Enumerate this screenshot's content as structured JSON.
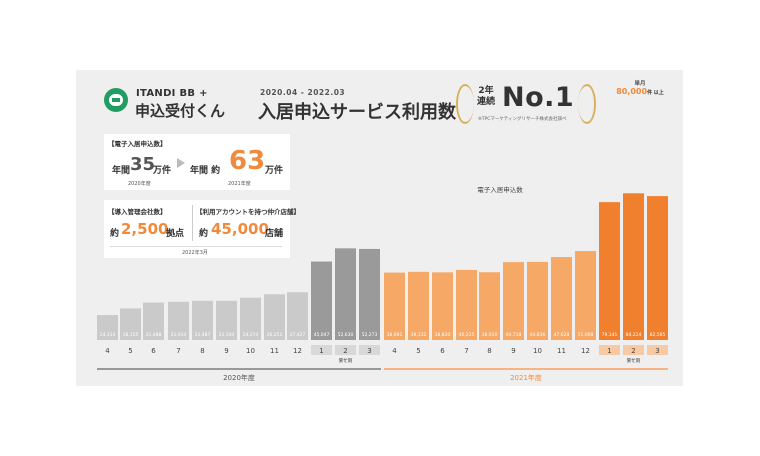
{
  "header": {
    "brand": "ITANDI BB +",
    "product": "申込受付くん",
    "period": "2020.04 - 2022.03",
    "headline": "入居申込サービス利用数",
    "award_years": "2年連続",
    "award_title": "No.1",
    "award_note": "※TPCマーケティングリサーチ株式会社調べ"
  },
  "stats": {
    "card1_tag": "【電子入居申込数】",
    "before_prefix": "年間",
    "before_value": "35",
    "before_unit": "万件",
    "before_year": "2020年度",
    "after_prefix": "年間 約",
    "after_value": "63",
    "after_unit": "万件",
    "after_year": "2021年度",
    "card2_tag_left": "【導入管理会社数】",
    "card2_tag_right": "【利用アカウントを持つ仲介店舗】",
    "companies_prefix": "約",
    "companies_value": "2,500",
    "companies_unit": "拠点",
    "stores_prefix": "約",
    "stores_value": "45,000",
    "stores_unit": "店舗",
    "card2_date": "2022年3月"
  },
  "badge": {
    "label": "単月",
    "value": "80,000",
    "suffix": "件 以上"
  },
  "chart_data": {
    "type": "bar",
    "series_label": "電子入居申込数",
    "categories": [
      "4",
      "5",
      "6",
      "7",
      "8",
      "9",
      "10",
      "11",
      "12",
      "1",
      "2",
      "3",
      "4",
      "5",
      "6",
      "7",
      "8",
      "9",
      "10",
      "11",
      "12",
      "1",
      "2",
      "3"
    ],
    "values": [
      14314,
      18155,
      21488,
      21934,
      22487,
      22504,
      24274,
      26251,
      27427,
      45047,
      52630,
      52273,
      38691,
      39132,
      38830,
      40225,
      38910,
      44718,
      44836,
      47628,
      51068,
      79141,
      84224,
      82585
    ],
    "value_labels": [
      "14,314",
      "18,155",
      "21,488",
      "21,934",
      "22,487",
      "22,504",
      "24,274",
      "26,251",
      "27,427",
      "45,047",
      "52,630",
      "52,273",
      "38,691",
      "39,132",
      "38,830",
      "40,225",
      "38,910",
      "44,718",
      "44,836",
      "47,628",
      "51,068",
      "79,141",
      "84,224",
      "82,585"
    ],
    "quarter_label": "繁忙期",
    "year_labels": [
      "2020年度",
      "2021年度"
    ],
    "colors": {
      "gray_light": "#cacaca",
      "gray_dark": "#9a9a9a",
      "orange_light": "#f6a867",
      "orange_dark": "#f07f2e"
    }
  }
}
